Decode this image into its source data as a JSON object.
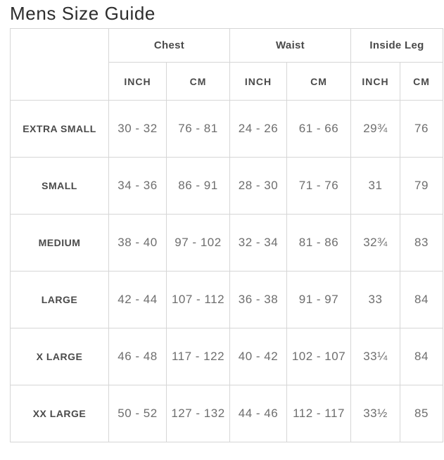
{
  "page": {
    "title": "Mens Size Guide"
  },
  "colors": {
    "border": "#d6d6d6",
    "title_text": "#2d2d2d",
    "header_text": "#4a4a4a",
    "size_text": "#4a4a4a",
    "value_text": "#6e6e6e",
    "background": "#ffffff"
  },
  "table": {
    "column_groups": [
      {
        "label": "Chest"
      },
      {
        "label": "Waist"
      },
      {
        "label": "Inside Leg"
      }
    ],
    "unit_headers": [
      "INCH",
      "CM",
      "INCH",
      "CM",
      "INCH",
      "CM"
    ],
    "rows": [
      {
        "size": "EXTRA SMALL",
        "chest_inch": "30 - 32",
        "chest_cm": "76 - 81",
        "waist_inch": "24 - 26",
        "waist_cm": "61 - 66",
        "leg_inch": "29¾",
        "leg_cm": "76"
      },
      {
        "size": "SMALL",
        "chest_inch": "34 - 36",
        "chest_cm": "86 - 91",
        "waist_inch": "28 - 30",
        "waist_cm": "71 - 76",
        "leg_inch": "31",
        "leg_cm": "79"
      },
      {
        "size": "MEDIUM",
        "chest_inch": "38 - 40",
        "chest_cm": "97 - 102",
        "waist_inch": "32 - 34",
        "waist_cm": "81 - 86",
        "leg_inch": "32¾",
        "leg_cm": "83"
      },
      {
        "size": "LARGE",
        "chest_inch": "42 - 44",
        "chest_cm": "107 - 112",
        "waist_inch": "36 - 38",
        "waist_cm": "91 - 97",
        "leg_inch": "33",
        "leg_cm": "84"
      },
      {
        "size": "X LARGE",
        "chest_inch": "46 - 48",
        "chest_cm": "117 - 122",
        "waist_inch": "40 - 42",
        "waist_cm": "102 - 107",
        "leg_inch": "33¼",
        "leg_cm": "84"
      },
      {
        "size": "XX LARGE",
        "chest_inch": "50 - 52",
        "chest_cm": "127 - 132",
        "waist_inch": "44 - 46",
        "waist_cm": "112 - 117",
        "leg_inch": "33½",
        "leg_cm": "85"
      }
    ]
  }
}
